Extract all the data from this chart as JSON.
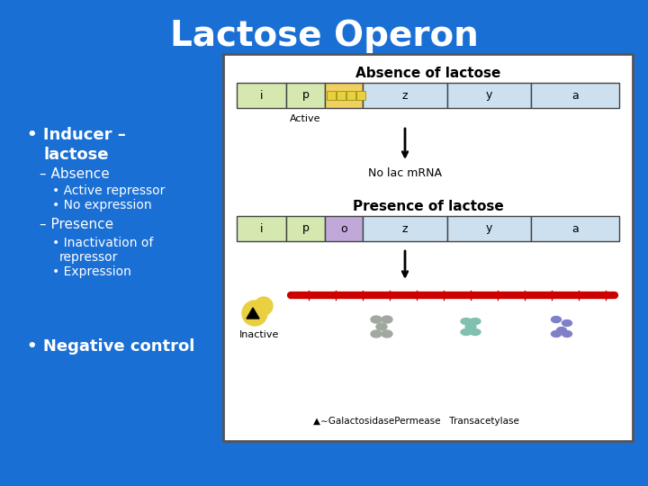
{
  "title": "Lactose Operon",
  "bg_color": "#1a6fd4",
  "title_color": "white",
  "left_text_color": "white",
  "absence_title": "Absence of lactose",
  "presence_title": "Presence of lactose",
  "gene_labels_absence": [
    "i",
    "p",
    "",
    "z",
    "y",
    "a"
  ],
  "gene_labels_presence": [
    "i",
    "p",
    "o",
    "z",
    "y",
    "a"
  ],
  "active_label": "Active",
  "inactive_label": "Inactive",
  "no_lac_mrna": "No lac mRNA",
  "gene_colors_absence": [
    "#d4e8b0",
    "#d4e8b0",
    "#f0d060",
    "#cce0f0",
    "#cce0f0",
    "#cce0f0"
  ],
  "gene_colors_presence": [
    "#d4e8b0",
    "#d4e8b0",
    "#c0a8d8",
    "#cce0f0",
    "#cce0f0",
    "#cce0f0"
  ],
  "repressor_color": "#e8d040",
  "mrna_line_color": "#cc0000",
  "gal_color": "#a0a8a0",
  "perm_color": "#80c0b0",
  "trans_color": "#8080c8"
}
